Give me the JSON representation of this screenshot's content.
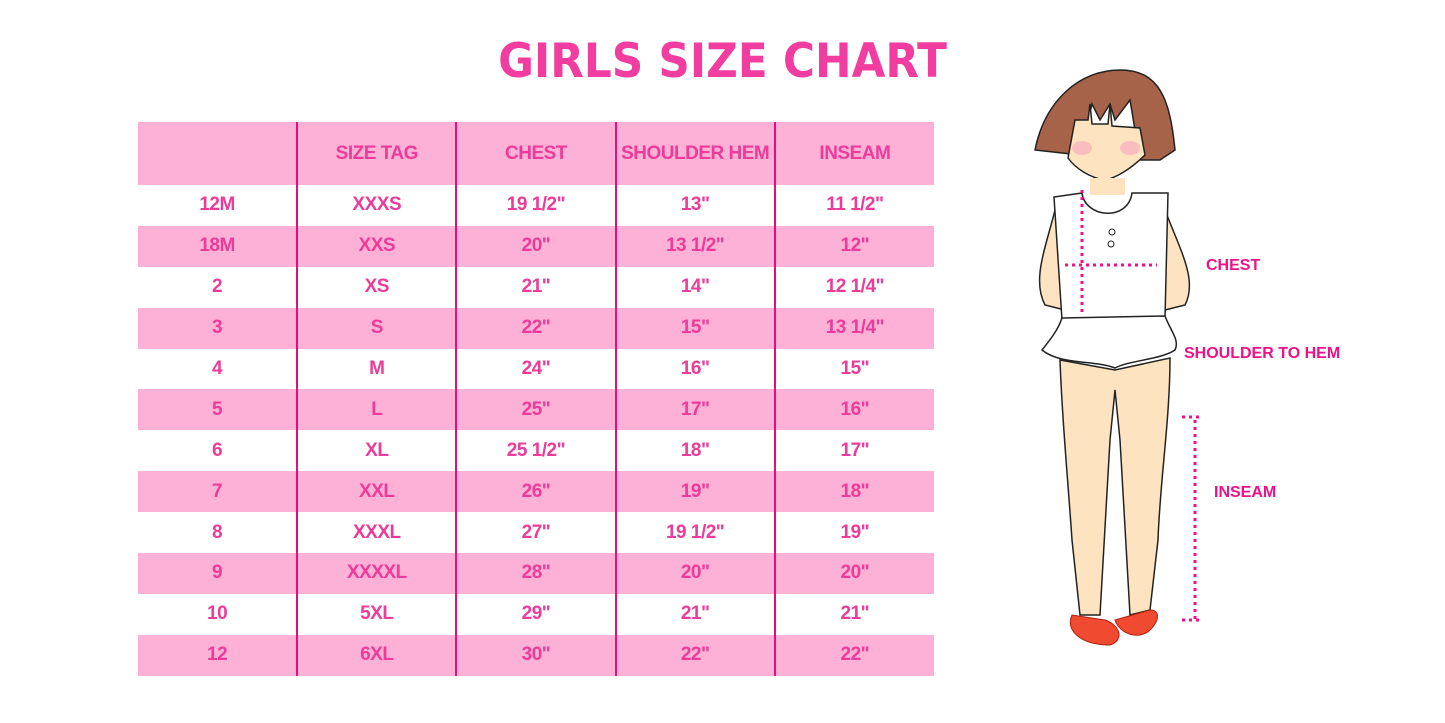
{
  "title": "GIRLS SIZE CHART",
  "colors": {
    "accent": "#ec3b99",
    "row_pink": "#fdb1d7",
    "divider": "#e2107f"
  },
  "table": {
    "headers": [
      "",
      "SIZE TAG",
      "CHEST",
      "SHOULDER HEM",
      "INSEAM"
    ],
    "rows": [
      [
        "12M",
        "XXXS",
        "19 1/2\"",
        "13\"",
        "11 1/2\""
      ],
      [
        "18M",
        "XXS",
        "20\"",
        "13 1/2\"",
        "12\""
      ],
      [
        "2",
        "XS",
        "21\"",
        "14\"",
        "12 1/4\""
      ],
      [
        "3",
        "S",
        "22\"",
        "15\"",
        "13 1/4\""
      ],
      [
        "4",
        "M",
        "24\"",
        "16\"",
        "15\""
      ],
      [
        "5",
        "L",
        "25\"",
        "17\"",
        "16\""
      ],
      [
        "6",
        "XL",
        "25 1/2\"",
        "18\"",
        "17\""
      ],
      [
        "7",
        "XXL",
        "26\"",
        "19\"",
        "18\""
      ],
      [
        "8",
        "XXXL",
        "27\"",
        "19 1/2\"",
        "19\""
      ],
      [
        "9",
        "XXXXL",
        "28\"",
        "20\"",
        "20\""
      ],
      [
        "10",
        "5XL",
        "29\"",
        "21\"",
        "21\""
      ],
      [
        "12",
        "6XL",
        "30\"",
        "22\"",
        "22\""
      ]
    ]
  },
  "figure": {
    "labels": {
      "chest": "CHEST",
      "shoulder_to_hem": "SHOULDER TO HEM",
      "inseam": "INSEAM"
    }
  }
}
